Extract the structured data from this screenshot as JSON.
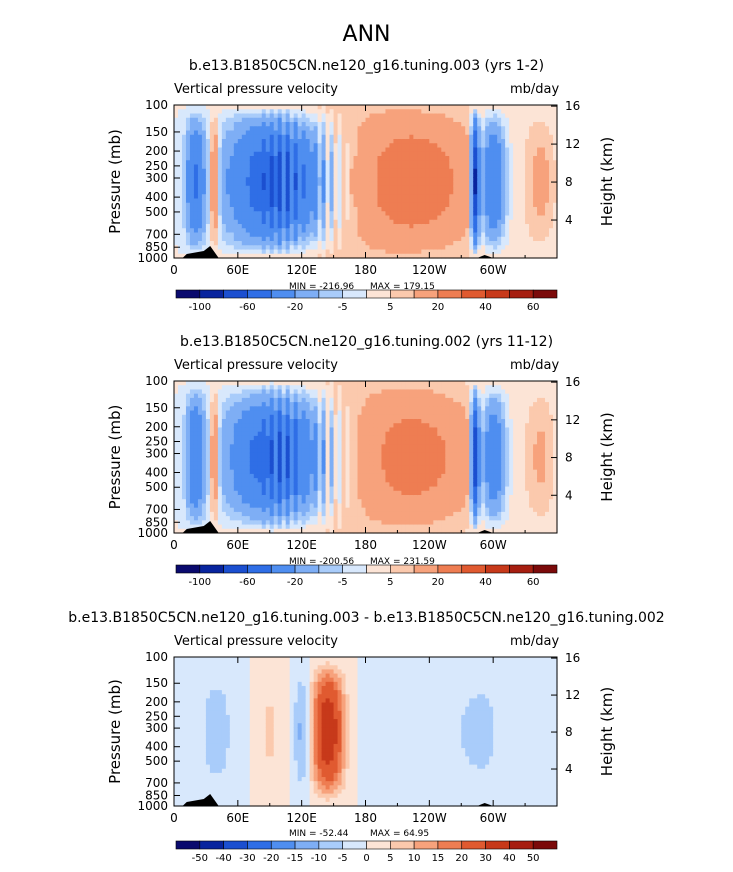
{
  "page_title": "ANN",
  "chart_data": [
    {
      "type": "heatmap",
      "title": "b.e13.B1850C5CN.ne120_g16.tuning.003 (yrs 1-2)",
      "variable": "Vertical pressure velocity",
      "units": "mb/day",
      "xlabel": "",
      "ylabel_left": "Pressure (mb)",
      "ylabel_right": "Height (km)",
      "x_ticks": [
        "0",
        "60E",
        "120E",
        "180",
        "120W",
        "60W"
      ],
      "y_ticks_left": [
        "100",
        "150",
        "200",
        "250",
        "300",
        "400",
        "500",
        "700",
        "850",
        "1000"
      ],
      "y_ticks_right": [
        "16",
        "12",
        "8",
        "4"
      ],
      "min_label": "MIN = -216.96",
      "max_label": "MAX = 179.15",
      "colorbar_labels": [
        "-100",
        "-60",
        "-20",
        "-5",
        "5",
        "20",
        "40",
        "60"
      ],
      "regions_description": [
        {
          "lon_range": [
            30,
            150
          ],
          "sign": "negative (ascent)",
          "peak": -60
        },
        {
          "lon_range": [
            165,
            280
          ],
          "sign": "positive (descent)",
          "peak": 30
        },
        {
          "lon_range": [
            282,
            300
          ],
          "sign": "negative",
          "peak": -100
        }
      ]
    },
    {
      "type": "heatmap",
      "title": "b.e13.B1850C5CN.ne120_g16.tuning.002 (yrs 11-12)",
      "variable": "Vertical pressure velocity",
      "units": "mb/day",
      "xlabel": "",
      "ylabel_left": "Pressure (mb)",
      "ylabel_right": "Height (km)",
      "x_ticks": [
        "0",
        "60E",
        "120E",
        "180",
        "120W",
        "60W"
      ],
      "y_ticks_left": [
        "100",
        "150",
        "200",
        "250",
        "300",
        "400",
        "500",
        "700",
        "850",
        "1000"
      ],
      "y_ticks_right": [
        "16",
        "12",
        "8",
        "4"
      ],
      "min_label": "MIN = -200.56",
      "max_label": "MAX = 231.59",
      "colorbar_labels": [
        "-100",
        "-60",
        "-20",
        "-5",
        "5",
        "20",
        "40",
        "60"
      ]
    },
    {
      "type": "heatmap",
      "title": "b.e13.B1850C5CN.ne120_g16.tuning.003 - b.e13.B1850C5CN.ne120_g16.tuning.002",
      "variable": "Vertical pressure velocity",
      "units": "mb/day",
      "xlabel": "",
      "ylabel_left": "Pressure (mb)",
      "ylabel_right": "Height (km)",
      "x_ticks": [
        "0",
        "60E",
        "120E",
        "180",
        "120W",
        "60W"
      ],
      "y_ticks_left": [
        "100",
        "150",
        "200",
        "250",
        "300",
        "400",
        "500",
        "700",
        "850",
        "1000"
      ],
      "y_ticks_right": [
        "16",
        "12",
        "8",
        "4"
      ],
      "min_label": "MIN = -52.44",
      "max_label": "MAX = 64.95",
      "colorbar_labels": [
        "-50",
        "-40",
        "-30",
        "-20",
        "-15",
        "-10",
        "-5",
        "0",
        "5",
        "10",
        "15",
        "20",
        "30",
        "40",
        "50"
      ]
    }
  ],
  "colors": {
    "colorbar_main": [
      "#0a0a6e",
      "#08249e",
      "#1b4fd0",
      "#2f6ee6",
      "#4f8ef0",
      "#7eaef5",
      "#a9ccfa",
      "#d8e8fc",
      "#fce4d6",
      "#fbc9ad",
      "#f7a27c",
      "#ee7d52",
      "#e05a30",
      "#c7391a",
      "#a61e10",
      "#7b0a0a"
    ],
    "colorbar_diff": [
      "#0a0a6e",
      "#08249e",
      "#1b4fd0",
      "#2f6ee6",
      "#4f8ef0",
      "#7eaef5",
      "#a9ccfa",
      "#d8e8fc",
      "#fce4d6",
      "#fbc9ad",
      "#f7a27c",
      "#ee7d52",
      "#e05a30",
      "#c7391a",
      "#a61e10",
      "#7b0a0a"
    ]
  }
}
